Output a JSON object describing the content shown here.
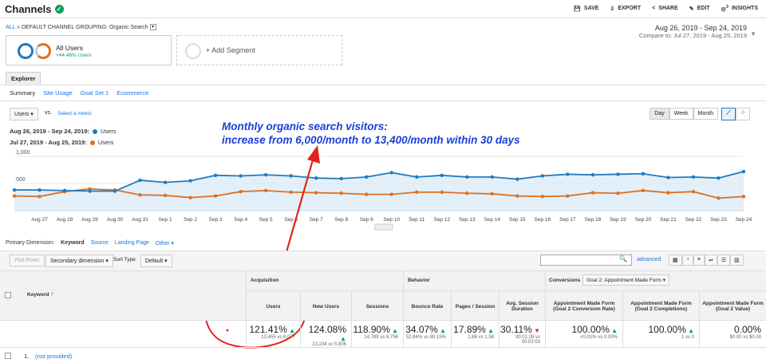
{
  "header": {
    "title": "Channels",
    "actions": [
      "SAVE",
      "EXPORT",
      "SHARE",
      "EDIT",
      "INSIGHTS"
    ],
    "insights_badge": "3"
  },
  "breadcrumb": {
    "all": "ALL",
    "path": "DEFAULT CHANNEL GROUPING: Organic Search"
  },
  "date_range": {
    "current": "Aug 26, 2019 - Sep 24, 2019",
    "compare": "Compare to: Jul 27, 2019 - Aug 25, 2019"
  },
  "segments": {
    "active_name": "All Users",
    "active_change": "+44.46% Users",
    "add_label": "+ Add Segment"
  },
  "tab": "Explorer",
  "subnav": [
    "Summary",
    "Site Usage",
    "Goal Set 1",
    "Ecommerce"
  ],
  "metric": {
    "selected": "Users",
    "vs": "vs.",
    "select_label": "Select a metric"
  },
  "range_buttons": [
    "Day",
    "Week",
    "Month"
  ],
  "legend": [
    {
      "label": "Aug 26, 2019 - Sep 24, 2019:",
      "series": "Users",
      "color": "#1f7bbf"
    },
    {
      "label": "Jul 27, 2019 - Aug 25, 2019:",
      "series": "Users",
      "color": "#e07020"
    }
  ],
  "annotation": {
    "line1": "Monthly organic search visitors:",
    "line2": "increase from 6,000/month to 13,400/month within 30 days",
    "color": "#1a3fd8"
  },
  "chart_data": {
    "type": "line",
    "y_ticks": [
      "1,000",
      "500"
    ],
    "ylim": [
      0,
      1000
    ],
    "x": [
      "Aug 26",
      "Aug 27",
      "Aug 28",
      "Aug 29",
      "Aug 30",
      "Aug 31",
      "Sep 1",
      "Sep 2",
      "Sep 3",
      "Sep 4",
      "Sep 5",
      "Sep 6",
      "Sep 7",
      "Sep 8",
      "Sep 9",
      "Sep 10",
      "Sep 11",
      "Sep 12",
      "Sep 13",
      "Sep 14",
      "Sep 15",
      "Sep 16",
      "Sep 17",
      "Sep 18",
      "Sep 19",
      "Sep 20",
      "Sep 21",
      "Sep 22",
      "Sep 23",
      "Sep 24"
    ],
    "x_labels": [
      "Aug 27",
      "Aug 28",
      "Aug 29",
      "Aug 30",
      "Aug 31",
      "Sep 1",
      "Sep 2",
      "Sep 3",
      "Sep 4",
      "Sep 5",
      "Sep 6",
      "Sep 7",
      "Sep 8",
      "Sep 9",
      "Sep 10",
      "Sep 11",
      "Sep 12",
      "Sep 13",
      "Sep 14",
      "Sep 15",
      "Sep 16",
      "Sep 17",
      "Sep 18",
      "Sep 19",
      "Sep 20",
      "Sep 21",
      "Sep 22",
      "Sep 23",
      "Sep 24"
    ],
    "series": [
      {
        "name": "Users",
        "color": "#1f7bbf",
        "values": [
          380,
          380,
          370,
          360,
          360,
          560,
          520,
          550,
          650,
          640,
          660,
          640,
          600,
          590,
          620,
          700,
          620,
          650,
          620,
          620,
          580,
          640,
          670,
          660,
          670,
          680,
          610,
          620,
          600,
          720
        ]
      },
      {
        "name": "Users",
        "color": "#e07020",
        "values": [
          270,
          260,
          350,
          400,
          380,
          290,
          280,
          240,
          270,
          350,
          370,
          340,
          330,
          320,
          300,
          300,
          340,
          340,
          320,
          310,
          270,
          260,
          270,
          330,
          320,
          370,
          330,
          350,
          230,
          260
        ]
      }
    ]
  },
  "primary_dimension": {
    "label": "Primary Dimension:",
    "options": [
      "Keyword",
      "Source",
      "Landing Page",
      "Other"
    ]
  },
  "table_controls": {
    "plot_rows": "Plot Rows",
    "secondary": "Secondary dimension",
    "sort_label": "Sort Type:",
    "sort_value": "Default",
    "advanced": "advanced"
  },
  "table": {
    "keyword_header": "Keyword",
    "groups": [
      "Acquisition",
      "Behavior",
      "Conversions"
    ],
    "conversion_select": "Goal 2: Appointment Made Form",
    "columns": [
      {
        "label": "Users",
        "value": "121.41%",
        "sub": "13,455 vs 6,077",
        "trend": "up"
      },
      {
        "label": "New Users",
        "value": "124.08%",
        "sub": "13,234 vs 5,906",
        "trend": "up"
      },
      {
        "label": "Sessions",
        "value": "118.90%",
        "sub": "14,789 vs 6,756",
        "trend": "up"
      },
      {
        "label": "Bounce Rate",
        "value": "34.07%",
        "sub": "52.84% vs 80.15%",
        "trend": "up"
      },
      {
        "label": "Pages / Session",
        "value": "17.89%",
        "sub": "1.86 vs 1.58",
        "trend": "up"
      },
      {
        "label": "Avg. Session Duration",
        "value": "30.11%",
        "sub": "00:01:26 vs 00:02:03",
        "trend": "down"
      },
      {
        "label": "Appointment Made Form (Goal 2 Conversion Rate)",
        "value": "100.00%",
        "sub": "<0.01% vs 0.00%",
        "trend": "up"
      },
      {
        "label": "Appointment Made Form (Goal 2 Completions)",
        "value": "100.00%",
        "sub": "1 vs 0",
        "trend": "up"
      },
      {
        "label": "Appointment Made Form (Goal 2 Value)",
        "value": "0.00%",
        "sub": "$0.00 vs $0.00",
        "trend": ""
      }
    ],
    "first_row": {
      "index": "1.",
      "keyword": "(not provided)"
    }
  }
}
